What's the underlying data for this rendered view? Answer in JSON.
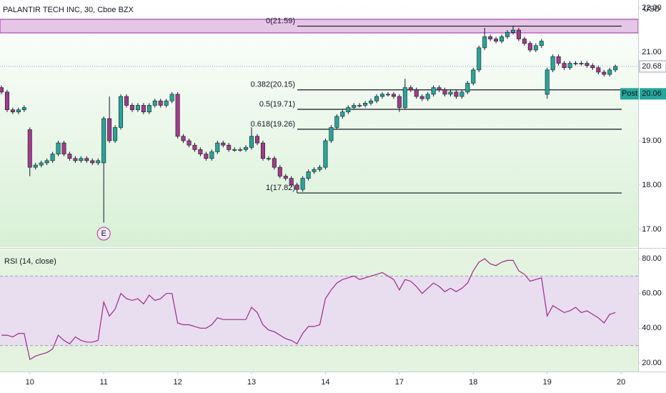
{
  "chart_data": [
    {
      "type": "candlestick",
      "title": "PALANTIR TECH INC, 30, Cboe BZX",
      "currency": "USD",
      "up_color": "#26a69a",
      "down_color": "#a23b8b",
      "open": [
        20.2,
        20.1,
        19.7,
        19.65,
        19.7,
        19.25,
        18.4,
        18.45,
        18.5,
        18.55,
        18.7,
        18.95,
        18.7,
        18.6,
        18.55,
        18.6,
        18.55,
        18.5,
        18.5,
        19.5,
        19.0,
        19.3,
        20.0,
        19.8,
        19.7,
        19.8,
        19.65,
        19.8,
        19.9,
        19.8,
        19.9,
        20.05,
        19.1,
        19.0,
        18.9,
        18.8,
        18.7,
        18.6,
        18.75,
        18.95,
        18.9,
        18.8,
        18.8,
        18.8,
        18.85,
        19.1,
        18.95,
        18.6,
        18.6,
        18.4,
        18.2,
        18.15,
        18.0,
        17.9,
        18.15,
        18.3,
        18.35,
        18.4,
        19.0,
        19.3,
        19.55,
        19.65,
        19.75,
        19.8,
        19.8,
        19.85,
        19.9,
        20.0,
        20.05,
        20.05,
        20.0,
        19.75,
        20.2,
        20.15,
        20.0,
        19.95,
        20.05,
        20.2,
        20.15,
        20.05,
        20.1,
        20.0,
        20.1,
        20.3,
        20.6,
        21.1,
        21.35,
        21.3,
        21.25,
        21.35,
        21.45,
        21.5,
        21.3,
        21.2,
        21.05,
        21.15,
        20.05,
        20.6,
        20.9,
        20.75,
        20.65,
        20.75,
        20.75,
        20.75,
        20.7,
        20.65,
        20.55,
        20.5,
        20.6
      ],
      "high": [
        20.25,
        20.15,
        19.75,
        19.75,
        19.8,
        19.3,
        18.5,
        18.55,
        18.6,
        18.75,
        19.0,
        19.0,
        18.75,
        18.65,
        18.65,
        18.65,
        18.6,
        18.6,
        19.55,
        20.0,
        19.35,
        20.05,
        20.05,
        19.85,
        19.85,
        19.85,
        19.85,
        19.95,
        19.95,
        19.95,
        20.1,
        20.1,
        19.15,
        19.05,
        18.95,
        18.85,
        18.75,
        18.8,
        19.0,
        19.0,
        18.95,
        18.85,
        18.85,
        18.9,
        19.3,
        19.15,
        19.0,
        18.65,
        18.65,
        18.45,
        18.25,
        18.2,
        18.05,
        18.2,
        18.35,
        18.4,
        18.45,
        19.05,
        19.35,
        19.6,
        19.7,
        19.8,
        19.85,
        19.85,
        19.9,
        19.95,
        20.05,
        20.1,
        20.1,
        20.1,
        20.05,
        20.4,
        20.25,
        20.2,
        20.05,
        20.1,
        20.25,
        20.25,
        20.2,
        20.15,
        20.15,
        20.15,
        20.35,
        20.65,
        21.15,
        21.55,
        21.4,
        21.35,
        21.4,
        21.5,
        21.59,
        21.55,
        21.35,
        21.25,
        21.2,
        21.3,
        20.65,
        20.95,
        20.95,
        20.8,
        20.8,
        20.8,
        20.8,
        20.8,
        20.75,
        20.7,
        20.6,
        20.65,
        20.72
      ],
      "low": [
        20.05,
        19.65,
        19.6,
        19.6,
        19.65,
        18.2,
        18.35,
        18.4,
        18.45,
        18.5,
        18.65,
        18.65,
        18.55,
        18.5,
        18.5,
        18.5,
        18.45,
        18.45,
        17.15,
        18.95,
        18.95,
        19.25,
        19.75,
        19.65,
        19.65,
        19.6,
        19.6,
        19.75,
        19.75,
        19.75,
        19.85,
        19.05,
        18.95,
        18.85,
        18.75,
        18.65,
        18.55,
        18.55,
        18.7,
        18.85,
        18.75,
        18.75,
        18.75,
        18.75,
        18.8,
        18.9,
        18.55,
        18.55,
        18.35,
        18.15,
        18.1,
        17.95,
        17.82,
        17.85,
        18.1,
        18.25,
        18.3,
        18.35,
        18.95,
        19.25,
        19.5,
        19.6,
        19.7,
        19.75,
        19.75,
        19.8,
        19.85,
        19.95,
        20.0,
        19.95,
        19.65,
        19.7,
        20.1,
        19.95,
        19.9,
        19.9,
        20.0,
        20.1,
        20.0,
        20.0,
        19.95,
        19.95,
        20.05,
        20.25,
        20.55,
        21.05,
        21.25,
        21.2,
        21.2,
        21.3,
        21.4,
        21.25,
        21.15,
        21.0,
        21.0,
        21.1,
        19.95,
        20.55,
        20.7,
        20.6,
        20.6,
        20.7,
        20.7,
        20.65,
        20.6,
        20.5,
        20.45,
        20.45,
        20.55
      ],
      "close": [
        20.1,
        19.7,
        19.65,
        19.7,
        19.75,
        18.4,
        18.45,
        18.5,
        18.55,
        18.7,
        18.95,
        18.7,
        18.6,
        18.55,
        18.6,
        18.55,
        18.5,
        18.55,
        19.5,
        19.0,
        19.3,
        20.0,
        19.8,
        19.7,
        19.8,
        19.65,
        19.8,
        19.9,
        19.8,
        19.9,
        20.05,
        19.1,
        19.0,
        18.9,
        18.8,
        18.7,
        18.6,
        18.75,
        18.95,
        18.9,
        18.8,
        18.8,
        18.8,
        18.85,
        19.1,
        18.95,
        18.6,
        18.6,
        18.4,
        18.2,
        18.15,
        18.0,
        17.9,
        18.15,
        18.3,
        18.35,
        18.4,
        19.0,
        19.3,
        19.55,
        19.65,
        19.75,
        19.8,
        19.8,
        19.85,
        19.9,
        20.0,
        20.05,
        20.05,
        20.0,
        19.75,
        20.2,
        20.15,
        20.0,
        19.95,
        20.05,
        20.2,
        20.15,
        20.05,
        20.1,
        20.0,
        20.1,
        20.3,
        20.6,
        21.1,
        21.35,
        21.3,
        21.25,
        21.35,
        21.45,
        21.5,
        21.3,
        21.2,
        21.05,
        21.15,
        21.25,
        20.6,
        20.9,
        20.75,
        20.65,
        20.75,
        20.75,
        20.75,
        20.7,
        20.65,
        20.55,
        20.5,
        20.6,
        20.68
      ],
      "xlim": [
        -0.25,
        112
      ],
      "xticks": [
        {
          "value": 5,
          "label": "10"
        },
        {
          "value": 18,
          "label": "11"
        },
        {
          "value": 31,
          "label": "12"
        },
        {
          "value": 44,
          "label": "13"
        },
        {
          "value": 57,
          "label": "14"
        },
        {
          "value": 70,
          "label": "17"
        },
        {
          "value": 83,
          "label": "18"
        },
        {
          "value": 96,
          "label": "19"
        },
        {
          "value": 109,
          "label": "20"
        }
      ],
      "ylim": [
        16.61,
        22.18
      ],
      "yticks": [
        {
          "value": 17,
          "label": "17.00"
        },
        {
          "value": 18,
          "label": "18.00"
        },
        {
          "value": 19,
          "label": "19.00"
        },
        {
          "value": 20,
          "label": "20.00"
        },
        {
          "value": 21,
          "label": "21.00"
        },
        {
          "value": 22,
          "label": "22.00"
        }
      ],
      "fib_levels": [
        {
          "label": "0(21.59)",
          "value": 21.59
        },
        {
          "label": "0.382(20.15)",
          "value": 20.15
        },
        {
          "label": "0.5(19.71)",
          "value": 19.71
        },
        {
          "label": "0.618(19.26)",
          "value": 19.26
        },
        {
          "label": "1(17.82)",
          "value": 17.82
        }
      ],
      "events": [
        {
          "x": 18,
          "label": "E"
        }
      ],
      "last_price": 20.68,
      "post_label": "Post",
      "post_price": 20.06
    },
    {
      "type": "line",
      "title": "RSI (14, close)",
      "color": "#a0288c",
      "values": [
        36,
        36,
        35,
        37,
        37,
        22,
        24,
        25,
        26,
        28,
        36,
        33,
        31,
        35,
        33,
        32,
        32,
        33,
        55,
        47,
        51,
        60,
        57,
        56,
        57,
        54,
        59,
        56,
        57,
        60,
        60,
        43,
        42,
        42,
        41,
        40,
        40,
        42,
        46,
        45,
        45,
        45,
        45,
        45,
        52,
        49,
        42,
        39,
        38,
        36,
        34,
        33,
        31,
        37,
        41,
        41,
        42,
        57,
        62,
        66,
        68,
        69,
        70,
        68,
        69,
        70,
        71,
        72,
        70,
        68,
        62,
        68,
        67,
        64,
        60,
        63,
        66,
        64,
        61,
        63,
        61,
        63,
        66,
        73,
        78,
        80,
        77,
        76,
        78,
        79,
        79,
        73,
        71,
        67,
        68,
        69,
        47,
        53,
        51,
        49,
        50,
        52,
        49,
        50,
        48,
        46,
        43,
        48,
        49
      ],
      "ylim": [
        15.07,
        84.93
      ],
      "yticks": [
        {
          "value": 20,
          "label": "20.00"
        },
        {
          "value": 40,
          "label": "40.00"
        },
        {
          "value": 60,
          "label": "60.00"
        },
        {
          "value": 80,
          "label": "80.00"
        }
      ],
      "band": [
        30,
        70
      ]
    }
  ]
}
